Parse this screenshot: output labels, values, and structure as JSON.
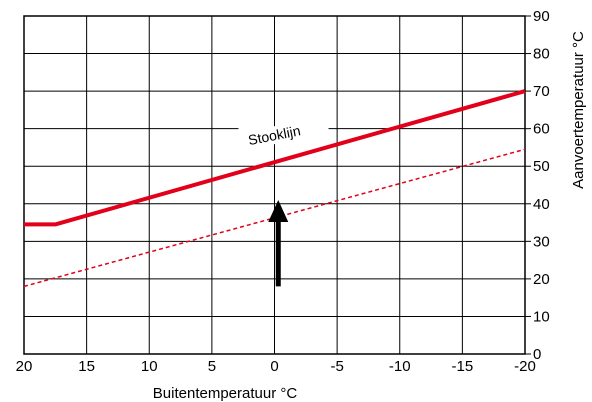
{
  "chart_data": {
    "type": "line",
    "xlabel": "Buitentemperatuur °C",
    "ylabel": "Aanvoertemperatuur °C",
    "xlim": [
      20,
      -20
    ],
    "ylim": [
      0,
      90
    ],
    "x_ticks": [
      20,
      15,
      10,
      5,
      0,
      -5,
      -10,
      -15,
      -20
    ],
    "x_tick_labels": [
      "20",
      "15",
      "10",
      "5",
      "0",
      "-5",
      "-10",
      "-15",
      "-20"
    ],
    "y_ticks": [
      0,
      10,
      20,
      30,
      40,
      50,
      60,
      70,
      80,
      90
    ],
    "y_tick_labels": [
      "0",
      "10",
      "20",
      "30",
      "40",
      "50",
      "60",
      "70",
      "80",
      "90"
    ],
    "grid": true,
    "y_axis_side": "right",
    "series": [
      {
        "name": "Stooklijn",
        "style": "solid",
        "color": "#e2001a",
        "points": [
          [
            20,
            34.5
          ],
          [
            17.5,
            34.5
          ],
          [
            -20,
            70
          ]
        ]
      },
      {
        "style": "dashed",
        "color": "#e2001a",
        "points": [
          [
            20,
            18
          ],
          [
            -20,
            54.5
          ]
        ]
      }
    ],
    "annotations": [
      {
        "text": "Stooklijn",
        "x": 0,
        "y": 58
      },
      {
        "type": "arrow",
        "direction": "up",
        "x": -0.3,
        "y_from": 18,
        "y_to": 41,
        "color": "#000000"
      }
    ]
  }
}
